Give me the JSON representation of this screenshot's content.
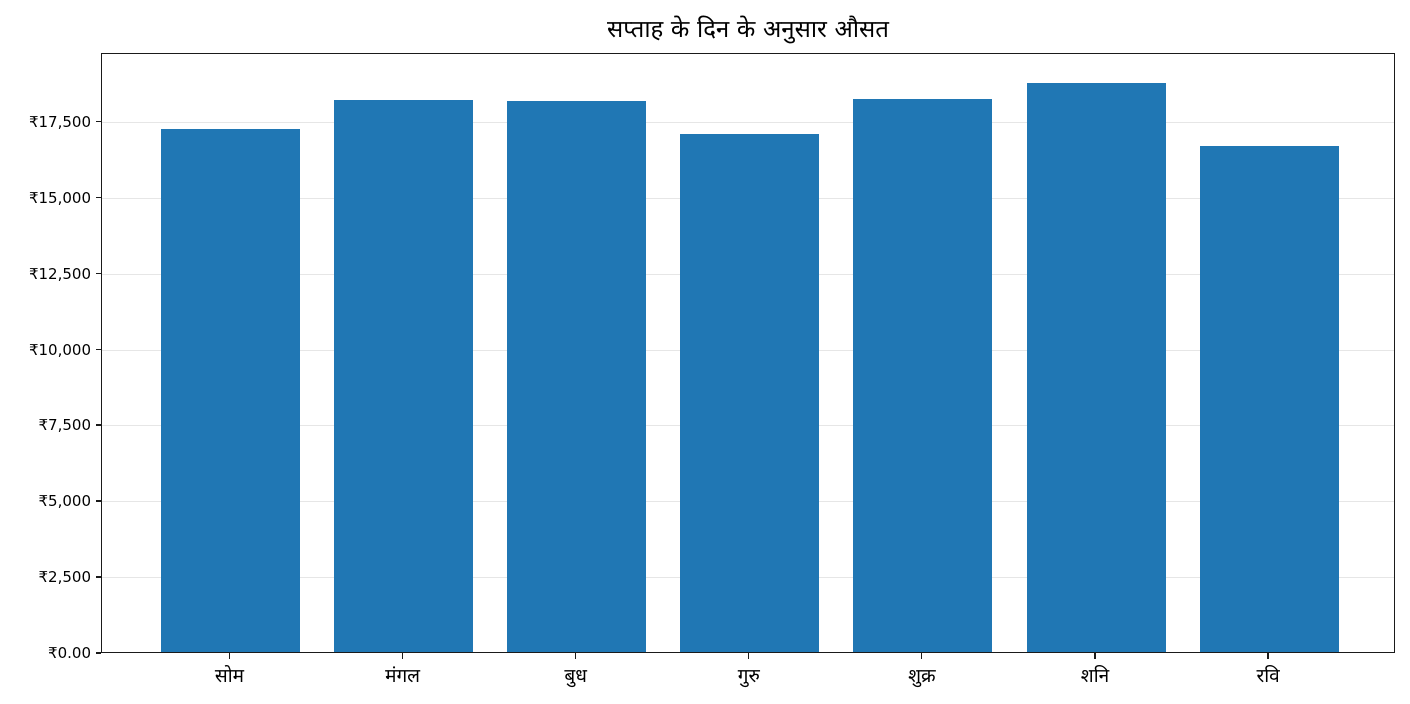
{
  "chart_data": {
    "type": "bar",
    "title": "सप्ताह के दिन के अनुसार औसत",
    "xlabel": "",
    "ylabel": "",
    "categories": [
      "सोम",
      "मंगल",
      "बुध",
      "गुरु",
      "शुक्र",
      "शनि",
      "रवि"
    ],
    "values": [
      17300,
      18260,
      18230,
      17140,
      18290,
      18820,
      16740
    ],
    "ylim": [
      0,
      19770
    ],
    "yticks": [
      0,
      2500,
      5000,
      7500,
      10000,
      12500,
      15000,
      17500
    ],
    "ytick_labels": [
      "₹0.00",
      "₹2,500",
      "₹5,000",
      "₹7,500",
      "₹10,000",
      "₹12,500",
      "₹15,000",
      "₹17,500"
    ],
    "grid": {
      "y": true,
      "x": false
    },
    "legend": null,
    "bar_color": "#2077b4"
  }
}
